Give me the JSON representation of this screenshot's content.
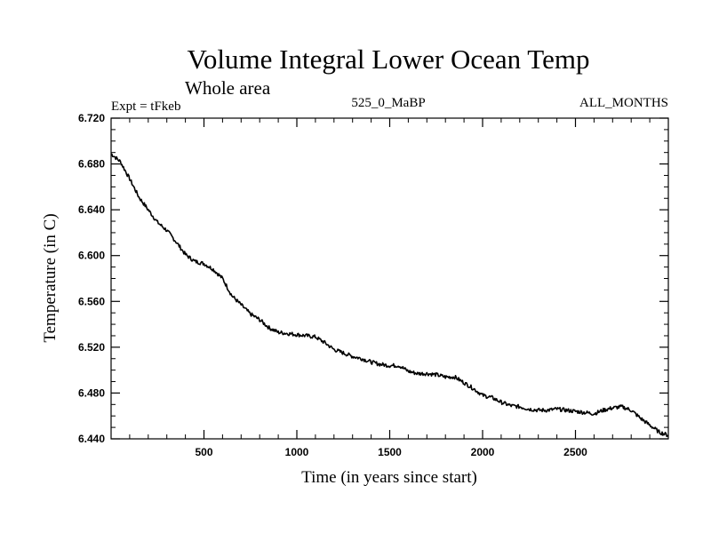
{
  "chart_data": {
    "type": "line",
    "title": "Volume Integral Lower Ocean Temp",
    "subtitle": "Whole area",
    "experiment": "Expt = tFkeb",
    "period": "525_0_MaBP",
    "months": "ALL_MONTHS",
    "xlabel": "Time (in years since start)",
    "ylabel": "Temperature (in C)",
    "xlim": [
      0,
      3000
    ],
    "ylim": [
      6.44,
      6.72
    ],
    "x_ticks": [
      500,
      1000,
      1500,
      2000,
      2500
    ],
    "x_tick_labels": [
      "500",
      "1000",
      "1500",
      "2000",
      "2500"
    ],
    "y_ticks": [
      6.44,
      6.48,
      6.52,
      6.56,
      6.6,
      6.64,
      6.68,
      6.72
    ],
    "y_tick_labels": [
      "6.440",
      "6.480",
      "6.520",
      "6.560",
      "6.600",
      "6.640",
      "6.680",
      "6.720"
    ],
    "grid": false,
    "line_color": "#000000",
    "series": [
      {
        "x": [
          0,
          50,
          100,
          150,
          200,
          250,
          300,
          350,
          400,
          450,
          500,
          550,
          600,
          650,
          700,
          750,
          800,
          850,
          900,
          950,
          1000,
          1050,
          1100,
          1150,
          1200,
          1250,
          1300,
          1350,
          1400,
          1450,
          1500,
          1550,
          1600,
          1650,
          1700,
          1750,
          1800,
          1850,
          1900,
          1950,
          2000,
          2050,
          2100,
          2150,
          2200,
          2250,
          2300,
          2350,
          2400,
          2450,
          2500,
          2550,
          2600,
          2650,
          2700,
          2750,
          2800,
          2850,
          2900,
          2950,
          3000
        ],
        "y": [
          6.689,
          6.682,
          6.667,
          6.651,
          6.64,
          6.629,
          6.622,
          6.612,
          6.601,
          6.595,
          6.593,
          6.588,
          6.58,
          6.565,
          6.557,
          6.549,
          6.544,
          6.537,
          6.533,
          6.532,
          6.531,
          6.53,
          6.529,
          6.524,
          6.518,
          6.515,
          6.512,
          6.51,
          6.507,
          6.505,
          6.504,
          6.504,
          6.499,
          6.497,
          6.497,
          6.496,
          6.494,
          6.494,
          6.489,
          6.484,
          6.478,
          6.476,
          6.472,
          6.469,
          6.468,
          6.466,
          6.465,
          6.465,
          6.466,
          6.465,
          6.464,
          6.463,
          6.462,
          6.465,
          6.467,
          6.468,
          6.465,
          6.458,
          6.452,
          6.446,
          6.443
        ]
      }
    ]
  }
}
